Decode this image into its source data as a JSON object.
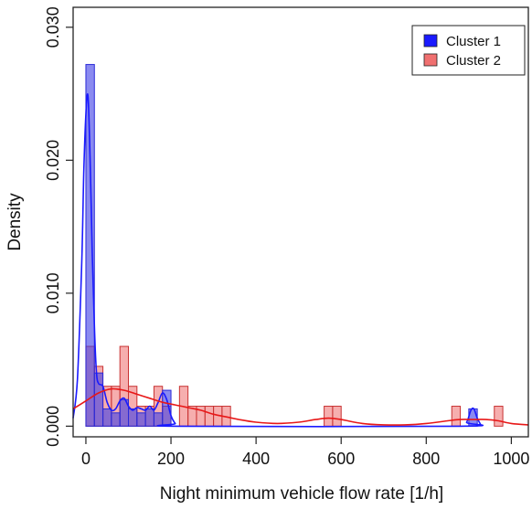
{
  "chart_data": {
    "type": "bar",
    "title": "",
    "xlabel": "Night minimum vehicle flow rate [1/h]",
    "ylabel": "Density",
    "xlim": [
      -30,
      1040
    ],
    "ylim": [
      -0.0008,
      0.0315
    ],
    "x_ticks": [
      0,
      200,
      400,
      600,
      800,
      1000
    ],
    "x_tick_labels": [
      "0",
      "200",
      "400",
      "600",
      "800",
      "1000"
    ],
    "y_ticks": [
      0.0,
      0.01,
      0.02,
      0.03
    ],
    "y_tick_labels": [
      "0.000",
      "0.010",
      "0.020",
      "0.030"
    ],
    "grid": false,
    "legend_position": "top-right",
    "series": [
      {
        "name": "Cluster 1",
        "color": "#2a2ad8",
        "fill": "rgba(60, 60, 230, 0.60)",
        "kde_color": "#1a1aff",
        "bins": [
          {
            "x0": 0,
            "x1": 20,
            "density": 0.0272
          },
          {
            "x0": 20,
            "x1": 40,
            "density": 0.004
          },
          {
            "x0": 40,
            "x1": 60,
            "density": 0.0013
          },
          {
            "x0": 60,
            "x1": 80,
            "density": 0.001
          },
          {
            "x0": 80,
            "x1": 100,
            "density": 0.002
          },
          {
            "x0": 100,
            "x1": 120,
            "density": 0.0013
          },
          {
            "x0": 120,
            "x1": 140,
            "density": 0.001
          },
          {
            "x0": 140,
            "x1": 160,
            "density": 0.0013
          },
          {
            "x0": 160,
            "x1": 180,
            "density": 0.001
          },
          {
            "x0": 180,
            "x1": 200,
            "density": 0.0027
          },
          {
            "x0": 900,
            "x1": 920,
            "density": 0.0013
          }
        ],
        "kde": [
          [
            -30,
            0.0006
          ],
          [
            -20,
            0.0035
          ],
          [
            -10,
            0.012
          ],
          [
            -5,
            0.019
          ],
          [
            0,
            0.0235
          ],
          [
            5,
            0.0248
          ],
          [
            10,
            0.02
          ],
          [
            15,
            0.013
          ],
          [
            20,
            0.0075
          ],
          [
            25,
            0.004
          ],
          [
            30,
            0.0032
          ],
          [
            40,
            0.003
          ],
          [
            50,
            0.0018
          ],
          [
            60,
            0.0012
          ],
          [
            70,
            0.0013
          ],
          [
            80,
            0.0019
          ],
          [
            90,
            0.0021
          ],
          [
            100,
            0.0015
          ],
          [
            110,
            0.0012
          ],
          [
            120,
            0.0014
          ],
          [
            130,
            0.0013
          ],
          [
            140,
            0.0012
          ],
          [
            150,
            0.0015
          ],
          [
            160,
            0.0012
          ],
          [
            170,
            0.0018
          ],
          [
            180,
            0.0025
          ],
          [
            190,
            0.002
          ],
          [
            200,
            0.0008
          ],
          [
            210,
            0.0002
          ],
          [
            220,
            0.0
          ],
          [
            880,
            0.0
          ],
          [
            895,
            0.0003
          ],
          [
            905,
            0.0012
          ],
          [
            912,
            0.0013
          ],
          [
            920,
            0.0006
          ],
          [
            930,
            0.0
          ]
        ]
      },
      {
        "name": "Cluster 2",
        "color": "#c83232",
        "fill": "rgba(240, 120, 120, 0.60)",
        "kde_color": "#e81818",
        "bins": [
          {
            "x0": 0,
            "x1": 20,
            "density": 0.006
          },
          {
            "x0": 20,
            "x1": 40,
            "density": 0.0045
          },
          {
            "x0": 40,
            "x1": 60,
            "density": 0.003
          },
          {
            "x0": 60,
            "x1": 80,
            "density": 0.003
          },
          {
            "x0": 80,
            "x1": 100,
            "density": 0.006
          },
          {
            "x0": 100,
            "x1": 120,
            "density": 0.003
          },
          {
            "x0": 120,
            "x1": 140,
            "density": 0.0015
          },
          {
            "x0": 140,
            "x1": 160,
            "density": 0.0015
          },
          {
            "x0": 160,
            "x1": 180,
            "density": 0.003
          },
          {
            "x0": 180,
            "x1": 200,
            "density": 0.0015
          },
          {
            "x0": 220,
            "x1": 240,
            "density": 0.003
          },
          {
            "x0": 240,
            "x1": 260,
            "density": 0.0015
          },
          {
            "x0": 260,
            "x1": 280,
            "density": 0.0015
          },
          {
            "x0": 280,
            "x1": 300,
            "density": 0.0015
          },
          {
            "x0": 300,
            "x1": 320,
            "density": 0.0015
          },
          {
            "x0": 320,
            "x1": 340,
            "density": 0.0015
          },
          {
            "x0": 560,
            "x1": 580,
            "density": 0.0015
          },
          {
            "x0": 580,
            "x1": 600,
            "density": 0.0015
          },
          {
            "x0": 860,
            "x1": 880,
            "density": 0.0015
          },
          {
            "x0": 960,
            "x1": 980,
            "density": 0.0015
          }
        ],
        "kde": [
          [
            -30,
            0.0013
          ],
          [
            0,
            0.0019
          ],
          [
            30,
            0.0025
          ],
          [
            60,
            0.0028
          ],
          [
            90,
            0.0027
          ],
          [
            120,
            0.0024
          ],
          [
            150,
            0.0021
          ],
          [
            180,
            0.0018
          ],
          [
            210,
            0.0016
          ],
          [
            240,
            0.0014
          ],
          [
            270,
            0.0012
          ],
          [
            300,
            0.0009
          ],
          [
            330,
            0.0007
          ],
          [
            360,
            0.0005
          ],
          [
            400,
            0.0003
          ],
          [
            450,
            0.0002
          ],
          [
            500,
            0.0003
          ],
          [
            540,
            0.0005
          ],
          [
            570,
            0.0006
          ],
          [
            600,
            0.0005
          ],
          [
            650,
            0.0002
          ],
          [
            700,
            0.0001
          ],
          [
            750,
            0.0001
          ],
          [
            800,
            0.0002
          ],
          [
            850,
            0.0004
          ],
          [
            880,
            0.0005
          ],
          [
            910,
            0.0005
          ],
          [
            940,
            0.0005
          ],
          [
            970,
            0.0004
          ],
          [
            1000,
            0.0002
          ],
          [
            1040,
            0.0001
          ]
        ]
      }
    ]
  }
}
